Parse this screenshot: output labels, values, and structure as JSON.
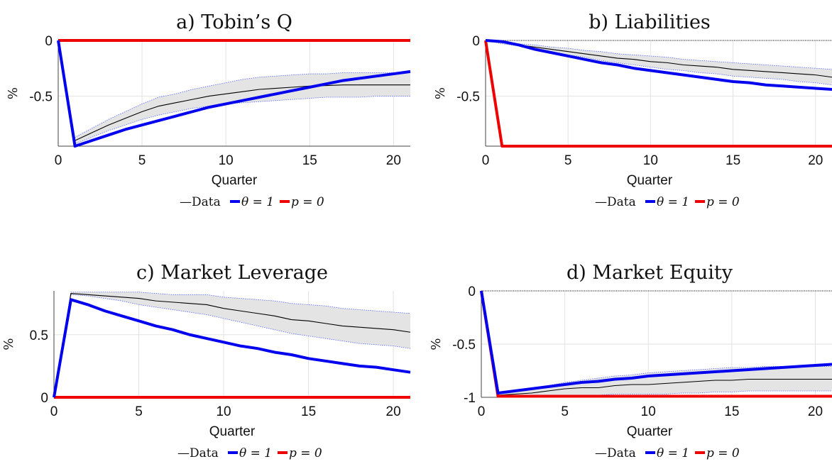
{
  "colors": {
    "data": "#000000",
    "band": "#e4e4e4",
    "band_edge": "#5566ff",
    "theta": "#0000ee",
    "p": "#ee0000",
    "grid": "#e2e2e2",
    "axis": "#444444"
  },
  "chart_data": [
    {
      "id": "a",
      "type": "line",
      "title": "a) Tobin’s Q",
      "xlabel": "Quarter",
      "ylabel": "%",
      "xlim": [
        0,
        21
      ],
      "ylim": [
        -0.95,
        0
      ],
      "xticks": [
        "0",
        "5",
        "10",
        "15",
        "20"
      ],
      "yticks": [
        "0",
        "-0.5"
      ],
      "zero_line": false,
      "grid": true,
      "legend": [
        "—Data",
        "θ = 1",
        "p = 0"
      ],
      "x": [
        0,
        1,
        2,
        3,
        4,
        5,
        6,
        7,
        8,
        9,
        10,
        11,
        12,
        13,
        14,
        15,
        16,
        17,
        18,
        19,
        20,
        21
      ],
      "data": [
        0,
        -0.9,
        -0.83,
        -0.76,
        -0.7,
        -0.64,
        -0.59,
        -0.56,
        -0.53,
        -0.5,
        -0.48,
        -0.46,
        -0.44,
        -0.43,
        -0.42,
        -0.41,
        -0.405,
        -0.4,
        -0.4,
        -0.4,
        -0.4,
        -0.4
      ],
      "band_upper": [
        0,
        -0.87,
        -0.79,
        -0.71,
        -0.64,
        -0.57,
        -0.51,
        -0.48,
        -0.44,
        -0.41,
        -0.38,
        -0.35,
        -0.33,
        -0.32,
        -0.31,
        -0.3,
        -0.3,
        -0.29,
        -0.29,
        -0.29,
        -0.29,
        -0.29
      ],
      "band_lower": [
        0,
        -0.93,
        -0.87,
        -0.81,
        -0.76,
        -0.71,
        -0.67,
        -0.64,
        -0.61,
        -0.59,
        -0.57,
        -0.56,
        -0.55,
        -0.54,
        -0.53,
        -0.52,
        -0.51,
        -0.51,
        -0.51,
        -0.5,
        -0.5,
        -0.5
      ],
      "theta": [
        0,
        -0.95,
        -0.9,
        -0.85,
        -0.8,
        -0.76,
        -0.72,
        -0.68,
        -0.64,
        -0.6,
        -0.57,
        -0.54,
        -0.51,
        -0.48,
        -0.45,
        -0.42,
        -0.39,
        -0.36,
        -0.34,
        -0.32,
        -0.3,
        -0.28
      ],
      "p": [
        0,
        0,
        0,
        0,
        0,
        0,
        0,
        0,
        0,
        0,
        0,
        0,
        0,
        0,
        0,
        0,
        0,
        0,
        0,
        0,
        0,
        0
      ]
    },
    {
      "id": "b",
      "type": "line",
      "title": "b) Liabilities",
      "xlabel": "Quarter",
      "ylabel": "%",
      "xlim": [
        0,
        21
      ],
      "ylim": [
        -0.95,
        0
      ],
      "xticks": [
        "0",
        "5",
        "10",
        "15",
        "20"
      ],
      "yticks": [
        "0",
        "-0.5"
      ],
      "zero_line": true,
      "grid": true,
      "legend": [
        "—Data",
        "θ = 1",
        "p = 0"
      ],
      "x": [
        0,
        1,
        2,
        3,
        4,
        5,
        6,
        7,
        8,
        9,
        10,
        11,
        12,
        13,
        14,
        15,
        16,
        17,
        18,
        19,
        20,
        21
      ],
      "data": [
        0,
        -0.02,
        -0.04,
        -0.06,
        -0.08,
        -0.1,
        -0.12,
        -0.14,
        -0.16,
        -0.17,
        -0.19,
        -0.2,
        -0.22,
        -0.23,
        -0.24,
        -0.26,
        -0.27,
        -0.28,
        -0.29,
        -0.3,
        -0.31,
        -0.33
      ],
      "band_upper": [
        0,
        -0.01,
        -0.03,
        -0.04,
        -0.06,
        -0.07,
        -0.09,
        -0.1,
        -0.12,
        -0.13,
        -0.14,
        -0.15,
        -0.17,
        -0.18,
        -0.19,
        -0.2,
        -0.21,
        -0.22,
        -0.23,
        -0.24,
        -0.25,
        -0.26
      ],
      "band_lower": [
        0,
        -0.03,
        -0.05,
        -0.08,
        -0.1,
        -0.13,
        -0.15,
        -0.18,
        -0.2,
        -0.22,
        -0.24,
        -0.26,
        -0.27,
        -0.29,
        -0.3,
        -0.32,
        -0.33,
        -0.34,
        -0.35,
        -0.37,
        -0.38,
        -0.4
      ],
      "theta": [
        0,
        -0.01,
        -0.04,
        -0.08,
        -0.11,
        -0.14,
        -0.17,
        -0.2,
        -0.22,
        -0.25,
        -0.27,
        -0.29,
        -0.31,
        -0.33,
        -0.35,
        -0.37,
        -0.38,
        -0.4,
        -0.41,
        -0.42,
        -0.43,
        -0.44
      ],
      "p": [
        0,
        -0.95,
        -0.95,
        -0.95,
        -0.95,
        -0.95,
        -0.95,
        -0.95,
        -0.95,
        -0.95,
        -0.95,
        -0.95,
        -0.95,
        -0.95,
        -0.95,
        -0.95,
        -0.95,
        -0.95,
        -0.95,
        -0.95,
        -0.95,
        -0.95
      ]
    },
    {
      "id": "c",
      "type": "line",
      "title": "c) Market Leverage",
      "xlabel": "Quarter",
      "ylabel": "%",
      "xlim": [
        0,
        21
      ],
      "ylim": [
        0,
        0.85
      ],
      "xticks": [
        "0",
        "5",
        "10",
        "15",
        "20"
      ],
      "yticks": [
        "0",
        "0.5"
      ],
      "zero_line": false,
      "grid": true,
      "legend": [
        "—Data",
        "θ = 1",
        "p = 0"
      ],
      "x": [
        0,
        1,
        2,
        3,
        4,
        5,
        6,
        7,
        8,
        9,
        10,
        11,
        12,
        13,
        14,
        15,
        16,
        17,
        18,
        19,
        20,
        21
      ],
      "data": [
        0,
        0.83,
        0.82,
        0.81,
        0.8,
        0.79,
        0.77,
        0.76,
        0.75,
        0.74,
        0.71,
        0.69,
        0.67,
        0.65,
        0.62,
        0.61,
        0.59,
        0.57,
        0.56,
        0.55,
        0.54,
        0.52
      ],
      "band_upper": [
        0,
        0.84,
        0.84,
        0.84,
        0.84,
        0.84,
        0.83,
        0.82,
        0.82,
        0.82,
        0.8,
        0.79,
        0.78,
        0.77,
        0.75,
        0.74,
        0.73,
        0.71,
        0.7,
        0.69,
        0.68,
        0.67
      ],
      "band_lower": [
        0,
        0.82,
        0.81,
        0.79,
        0.77,
        0.74,
        0.72,
        0.7,
        0.68,
        0.66,
        0.63,
        0.6,
        0.57,
        0.54,
        0.51,
        0.49,
        0.47,
        0.45,
        0.43,
        0.42,
        0.41,
        0.39
      ],
      "theta": [
        0,
        0.78,
        0.74,
        0.69,
        0.65,
        0.61,
        0.57,
        0.54,
        0.5,
        0.47,
        0.44,
        0.41,
        0.39,
        0.36,
        0.34,
        0.31,
        0.29,
        0.27,
        0.25,
        0.24,
        0.22,
        0.2
      ],
      "p": [
        0,
        0,
        0,
        0,
        0,
        0,
        0,
        0,
        0,
        0,
        0,
        0,
        0,
        0,
        0,
        0,
        0,
        0,
        0,
        0,
        0,
        0
      ]
    },
    {
      "id": "d",
      "type": "line",
      "title": "d) Market Equity",
      "xlabel": "Quarter",
      "ylabel": "%",
      "xlim": [
        0,
        21
      ],
      "ylim": [
        -1,
        0
      ],
      "xticks": [
        "0",
        "5",
        "10",
        "15",
        "20"
      ],
      "yticks": [
        "0",
        "-0.5",
        "-1"
      ],
      "zero_line": true,
      "grid": true,
      "legend": [
        "—Data",
        "θ = 1",
        "p = 0"
      ],
      "x": [
        0,
        1,
        2,
        3,
        4,
        5,
        6,
        7,
        8,
        9,
        10,
        11,
        12,
        13,
        14,
        15,
        16,
        17,
        18,
        19,
        20,
        21
      ],
      "data": [
        0,
        -0.98,
        -0.97,
        -0.96,
        -0.94,
        -0.92,
        -0.91,
        -0.91,
        -0.89,
        -0.88,
        -0.88,
        -0.87,
        -0.86,
        -0.85,
        -0.84,
        -0.84,
        -0.83,
        -0.83,
        -0.83,
        -0.83,
        -0.83,
        -0.83
      ],
      "band_upper": [
        0,
        -0.97,
        -0.94,
        -0.92,
        -0.89,
        -0.86,
        -0.84,
        -0.82,
        -0.8,
        -0.79,
        -0.77,
        -0.76,
        -0.75,
        -0.74,
        -0.73,
        -0.72,
        -0.72,
        -0.71,
        -0.71,
        -0.71,
        -0.71,
        -0.71
      ],
      "band_lower": [
        0,
        -0.99,
        -0.99,
        -0.99,
        -0.99,
        -0.98,
        -0.98,
        -0.98,
        -0.97,
        -0.97,
        -0.97,
        -0.97,
        -0.96,
        -0.96,
        -0.95,
        -0.95,
        -0.94,
        -0.94,
        -0.94,
        -0.94,
        -0.94,
        -0.94
      ],
      "theta": [
        0,
        -0.96,
        -0.94,
        -0.92,
        -0.9,
        -0.88,
        -0.86,
        -0.85,
        -0.83,
        -0.82,
        -0.8,
        -0.79,
        -0.78,
        -0.77,
        -0.76,
        -0.75,
        -0.74,
        -0.73,
        -0.72,
        -0.71,
        -0.7,
        -0.69
      ],
      "p": [
        0,
        -0.99,
        -0.99,
        -0.99,
        -0.99,
        -0.99,
        -0.99,
        -0.99,
        -0.99,
        -0.99,
        -0.99,
        -0.99,
        -0.99,
        -0.99,
        -0.99,
        -0.99,
        -0.99,
        -0.99,
        -0.99,
        -0.99,
        -0.99,
        -0.99
      ]
    }
  ]
}
